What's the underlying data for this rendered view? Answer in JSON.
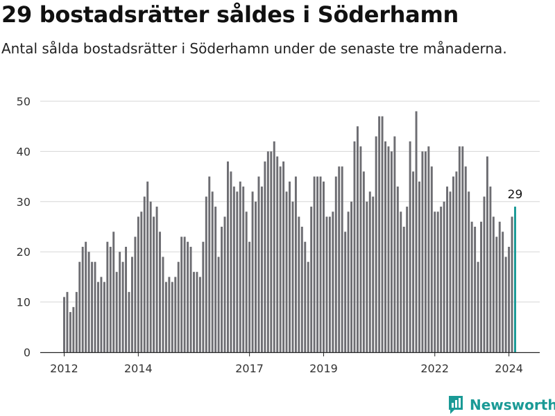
{
  "title": "29 bostadsrätter såldes i Söderhamn",
  "subtitle": "Antal sålda bostadsrätter i Söderhamn under de senaste tre månaderna.",
  "brand": {
    "name": "Newsworthy",
    "icon": "newsworthy-logo-icon",
    "color": "#1a9a96"
  },
  "chart_data": {
    "type": "bar",
    "grid": true,
    "ylim": [
      0,
      50
    ],
    "yticks": [
      0,
      10,
      20,
      30,
      40,
      50
    ],
    "xtick_labels": [
      "2012",
      "2014",
      "2017",
      "2019",
      "2022",
      "2024"
    ],
    "bar_color": "#6d6d72",
    "highlight_color": "#1a9a96",
    "highlight_label": "29",
    "x": [
      "2012-01",
      "2012-02",
      "2012-03",
      "2012-04",
      "2012-05",
      "2012-06",
      "2012-07",
      "2012-08",
      "2012-09",
      "2012-10",
      "2012-11",
      "2012-12",
      "2013-01",
      "2013-02",
      "2013-03",
      "2013-04",
      "2013-05",
      "2013-06",
      "2013-07",
      "2013-08",
      "2013-09",
      "2013-10",
      "2013-11",
      "2013-12",
      "2014-01",
      "2014-02",
      "2014-03",
      "2014-04",
      "2014-05",
      "2014-06",
      "2014-07",
      "2014-08",
      "2014-09",
      "2014-10",
      "2014-11",
      "2014-12",
      "2015-01",
      "2015-02",
      "2015-03",
      "2015-04",
      "2015-05",
      "2015-06",
      "2015-07",
      "2015-08",
      "2015-09",
      "2015-10",
      "2015-11",
      "2015-12",
      "2016-01",
      "2016-02",
      "2016-03",
      "2016-04",
      "2016-05",
      "2016-06",
      "2016-07",
      "2016-08",
      "2016-09",
      "2016-10",
      "2016-11",
      "2016-12",
      "2017-01",
      "2017-02",
      "2017-03",
      "2017-04",
      "2017-05",
      "2017-06",
      "2017-07",
      "2017-08",
      "2017-09",
      "2017-10",
      "2017-11",
      "2017-12",
      "2018-01",
      "2018-02",
      "2018-03",
      "2018-04",
      "2018-05",
      "2018-06",
      "2018-07",
      "2018-08",
      "2018-09",
      "2018-10",
      "2018-11",
      "2018-12",
      "2019-01",
      "2019-02",
      "2019-03",
      "2019-04",
      "2019-05",
      "2019-06",
      "2019-07",
      "2019-08",
      "2019-09",
      "2019-10",
      "2019-11",
      "2019-12",
      "2020-01",
      "2020-02",
      "2020-03",
      "2020-04",
      "2020-05",
      "2020-06",
      "2020-07",
      "2020-08",
      "2020-09",
      "2020-10",
      "2020-11",
      "2020-12",
      "2021-01",
      "2021-02",
      "2021-03",
      "2021-04",
      "2021-05",
      "2021-06",
      "2021-07",
      "2021-08",
      "2021-09",
      "2021-10",
      "2021-11",
      "2021-12",
      "2022-01",
      "2022-02",
      "2022-03",
      "2022-04",
      "2022-05",
      "2022-06",
      "2022-07",
      "2022-08",
      "2022-09",
      "2022-10",
      "2022-11",
      "2022-12",
      "2023-01",
      "2023-02",
      "2023-03",
      "2023-04",
      "2023-05",
      "2023-06",
      "2023-07",
      "2023-08",
      "2023-09",
      "2023-10",
      "2023-11",
      "2023-12",
      "2024-01",
      "2024-02",
      "2024-03"
    ],
    "values": [
      11,
      12,
      8,
      9,
      12,
      18,
      21,
      22,
      20,
      18,
      18,
      14,
      15,
      14,
      22,
      21,
      24,
      16,
      20,
      18,
      21,
      12,
      19,
      23,
      27,
      28,
      31,
      34,
      30,
      27,
      29,
      24,
      19,
      14,
      15,
      14,
      15,
      18,
      23,
      23,
      22,
      21,
      16,
      16,
      15,
      22,
      31,
      35,
      32,
      29,
      19,
      25,
      27,
      38,
      36,
      33,
      32,
      34,
      33,
      28,
      22,
      32,
      30,
      35,
      33,
      38,
      40,
      40,
      42,
      39,
      37,
      38,
      32,
      34,
      30,
      35,
      27,
      25,
      22,
      18,
      29,
      35,
      35,
      35,
      34,
      27,
      27,
      28,
      35,
      37,
      37,
      24,
      28,
      30,
      42,
      45,
      41,
      36,
      30,
      32,
      31,
      43,
      47,
      47,
      42,
      41,
      40,
      43,
      33,
      28,
      25,
      29,
      42,
      36,
      48,
      34,
      40,
      40,
      41,
      37,
      28,
      28,
      29,
      30,
      33,
      32,
      35,
      36,
      41,
      41,
      37,
      32,
      26,
      25,
      18,
      26,
      31,
      39,
      33,
      27,
      23,
      26,
      24,
      19,
      21,
      27,
      29
    ]
  }
}
